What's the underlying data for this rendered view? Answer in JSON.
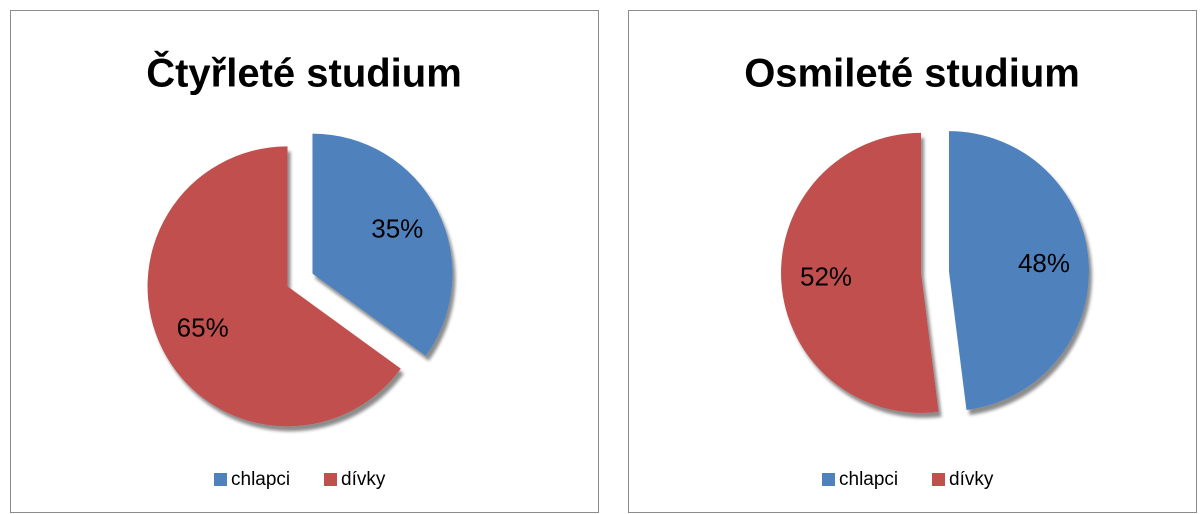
{
  "chart_data": [
    {
      "type": "pie",
      "title": "Čtyřleté studium",
      "categories": [
        "chlapci",
        "dívky"
      ],
      "values": [
        35,
        65
      ],
      "value_labels": [
        "35%",
        "65%"
      ],
      "colors": [
        "#4f81bd",
        "#c0504d"
      ],
      "legend": "bottom"
    },
    {
      "type": "pie",
      "title": "Osmileté studium",
      "categories": [
        "chlapci",
        "dívky"
      ],
      "values": [
        48,
        52
      ],
      "value_labels": [
        "48%",
        "52%"
      ],
      "colors": [
        "#4f81bd",
        "#c0504d"
      ],
      "legend": "bottom"
    }
  ]
}
